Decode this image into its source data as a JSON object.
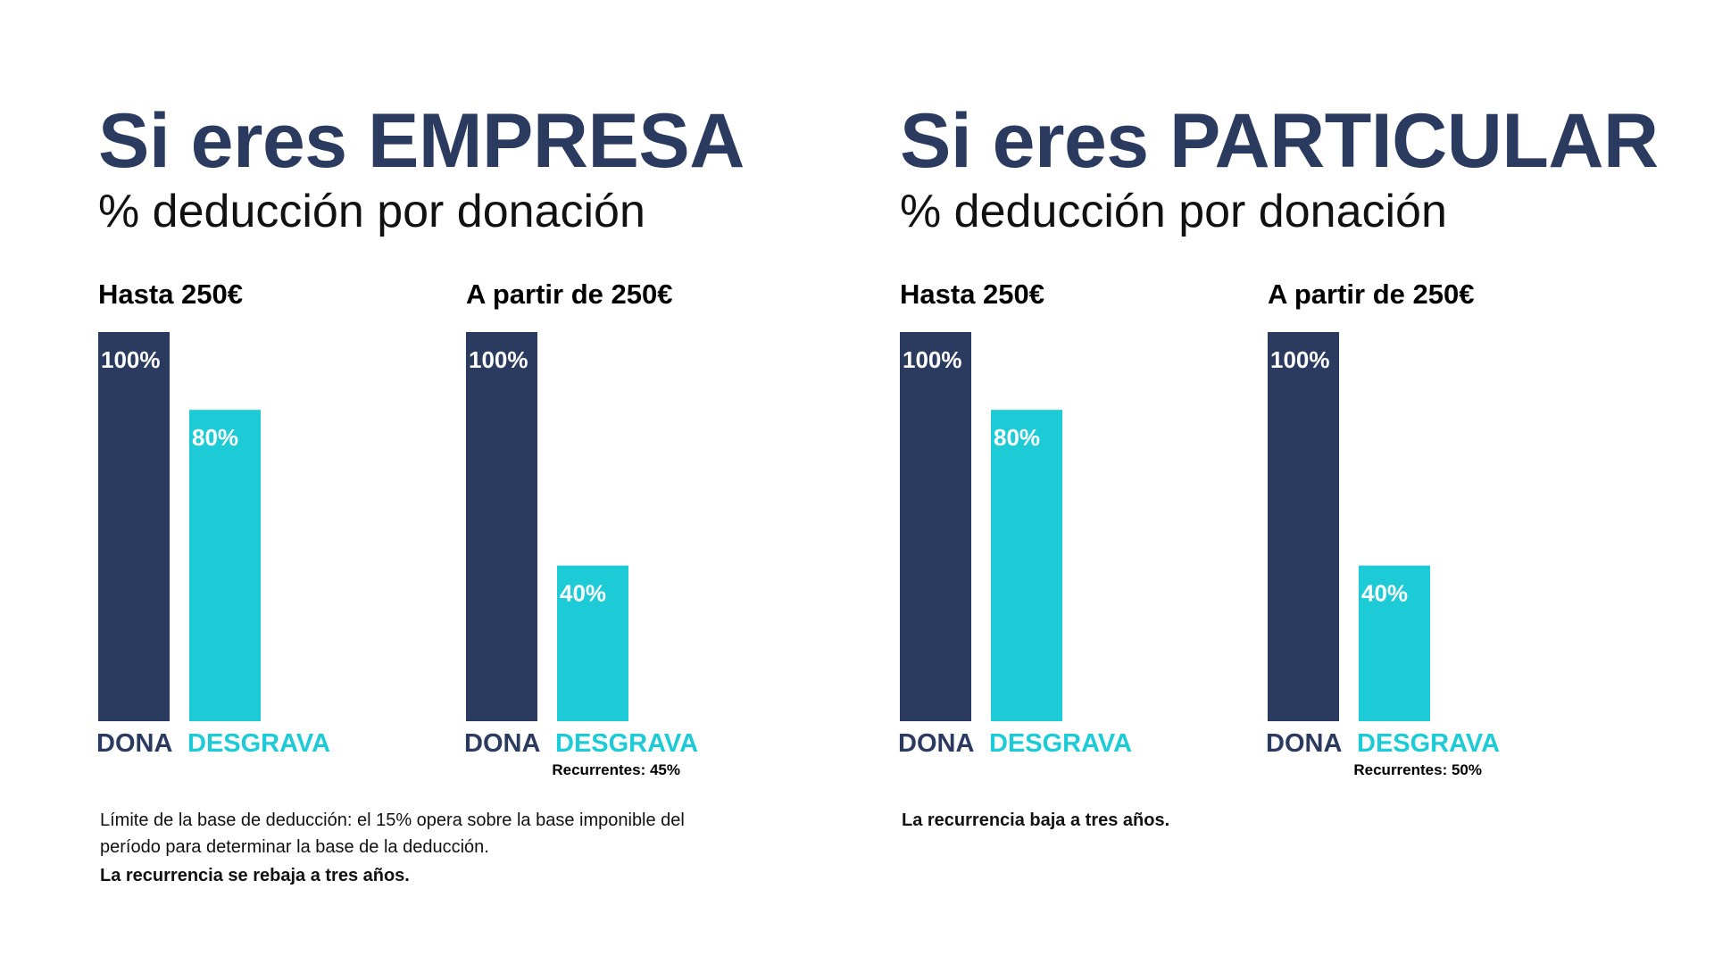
{
  "colors": {
    "title": "#2b3a5f",
    "dona": "#2b3a5f",
    "desgrava": "#1ccbd6",
    "bar_label": "#ffffff",
    "note": "#000000"
  },
  "panels": [
    {
      "title": "Si eres EMPRESA",
      "subtitle": "% deducción por donación",
      "notes": [
        "Límite de la base de deducción: el 15% opera sobre la base imponible del período para determinar la base de la deducción."
      ],
      "bold_note": "La recurrencia se rebaja a tres años."
    },
    {
      "title": "Si eres PARTICULAR",
      "subtitle": "% deducción por donación",
      "notes": [],
      "bold_note": "La recurrencia baja a tres años."
    }
  ],
  "chart_data": [
    {
      "type": "bar",
      "title": "Hasta 250€",
      "categories": [
        "DONA",
        "DESGRAVA"
      ],
      "values": [
        100,
        80
      ],
      "data_labels": [
        "100%",
        "80%"
      ],
      "ylim": [
        0,
        100
      ],
      "note": "",
      "colors": [
        "#2b3a5f",
        "#1ccbd6"
      ]
    },
    {
      "type": "bar",
      "title": "A partir de 250€",
      "categories": [
        "DONA",
        "DESGRAVA"
      ],
      "values": [
        100,
        40
      ],
      "data_labels": [
        "100%",
        "40%"
      ],
      "ylim": [
        0,
        100
      ],
      "note": "Recurrentes: 45%",
      "colors": [
        "#2b3a5f",
        "#1ccbd6"
      ]
    },
    {
      "type": "bar",
      "title": "Hasta 250€",
      "categories": [
        "DONA",
        "DESGRAVA"
      ],
      "values": [
        100,
        80
      ],
      "data_labels": [
        "100%",
        "80%"
      ],
      "ylim": [
        0,
        100
      ],
      "note": "",
      "colors": [
        "#2b3a5f",
        "#1ccbd6"
      ]
    },
    {
      "type": "bar",
      "title": "A partir de 250€",
      "categories": [
        "DONA",
        "DESGRAVA"
      ],
      "values": [
        100,
        40
      ],
      "data_labels": [
        "100%",
        "40%"
      ],
      "ylim": [
        0,
        100
      ],
      "note": "Recurrentes: 50%",
      "colors": [
        "#2b3a5f",
        "#1ccbd6"
      ]
    }
  ]
}
